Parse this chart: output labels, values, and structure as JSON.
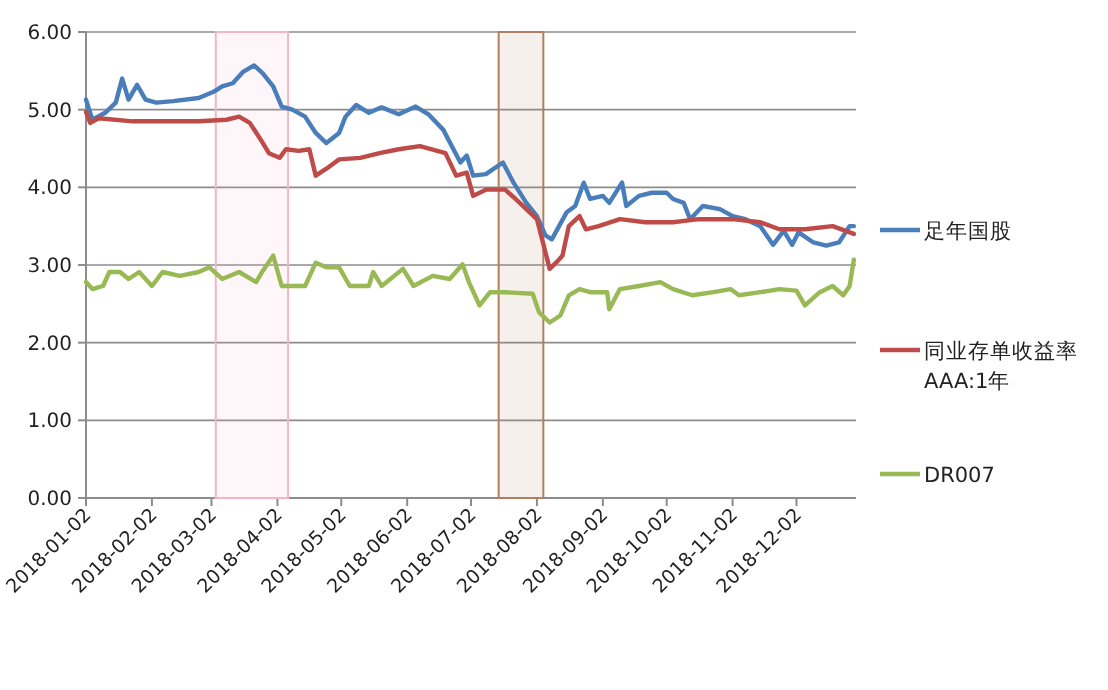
{
  "chart_data": {
    "type": "line",
    "xlim": [
      "2018-01-02",
      "2018-12-30"
    ],
    "ylim": [
      0,
      6
    ],
    "xticks": [
      "2018-01-02",
      "2018-02-02",
      "2018-03-02",
      "2018-04-02",
      "2018-05-02",
      "2018-06-02",
      "2018-07-02",
      "2018-08-02",
      "2018-09-02",
      "2018-10-02",
      "2018-11-02",
      "2018-12-02"
    ],
    "yticks": [
      {
        "value": 0,
        "label": "0.00"
      },
      {
        "value": 1,
        "label": "1.00"
      },
      {
        "value": 2,
        "label": "2.00"
      },
      {
        "value": 3,
        "label": "3.00"
      },
      {
        "value": 4,
        "label": "4.00"
      },
      {
        "value": 5,
        "label": "5.00"
      },
      {
        "value": 6,
        "label": "6.00"
      }
    ],
    "grid": "y",
    "legend": "right",
    "line_style": "solid",
    "marker": "none",
    "bands": [
      {
        "axis": "x",
        "from": "2018-03-04",
        "to": "2018-04-07",
        "color": "#f4b6c2"
      },
      {
        "axis": "x",
        "from": "2018-07-15",
        "to": "2018-08-05",
        "color": "#b08060"
      }
    ],
    "series": [
      {
        "name": "足年国股",
        "color": "#4a7ebb",
        "x": [
          "2018-01-02",
          "2018-01-05",
          "2018-01-11",
          "2018-01-16",
          "2018-01-19",
          "2018-01-22",
          "2018-01-26",
          "2018-01-30",
          "2018-02-04",
          "2018-02-12",
          "2018-02-24",
          "2018-03-03",
          "2018-03-07",
          "2018-03-12",
          "2018-03-17",
          "2018-03-22",
          "2018-03-26",
          "2018-03-31",
          "2018-04-04",
          "2018-04-09",
          "2018-04-15",
          "2018-04-20",
          "2018-04-25",
          "2018-05-01",
          "2018-05-04",
          "2018-05-09",
          "2018-05-15",
          "2018-05-21",
          "2018-05-29",
          "2018-06-06",
          "2018-06-12",
          "2018-06-19",
          "2018-06-23",
          "2018-06-27",
          "2018-06-30",
          "2018-07-03",
          "2018-07-09",
          "2018-07-17",
          "2018-07-22",
          "2018-07-28",
          "2018-08-02",
          "2018-08-06",
          "2018-08-09",
          "2018-08-16",
          "2018-08-20",
          "2018-08-24",
          "2018-08-27",
          "2018-09-02",
          "2018-09-05",
          "2018-09-11",
          "2018-09-13",
          "2018-09-19",
          "2018-09-25",
          "2018-10-02",
          "2018-10-05",
          "2018-10-10",
          "2018-10-13",
          "2018-10-19",
          "2018-10-27",
          "2018-11-02",
          "2018-11-08",
          "2018-11-15",
          "2018-11-21",
          "2018-11-26",
          "2018-11-30",
          "2018-12-03",
          "2018-12-10",
          "2018-12-16",
          "2018-12-22",
          "2018-12-27",
          "2018-12-29"
        ],
        "values": [
          5.13,
          4.87,
          4.96,
          5.09,
          5.4,
          5.13,
          5.32,
          5.13,
          5.09,
          5.11,
          5.15,
          5.23,
          5.3,
          5.34,
          5.49,
          5.57,
          5.47,
          5.3,
          5.04,
          5.0,
          4.91,
          4.7,
          4.57,
          4.7,
          4.91,
          5.06,
          4.96,
          5.03,
          4.94,
          5.04,
          4.94,
          4.74,
          4.53,
          4.32,
          4.41,
          4.15,
          4.17,
          4.32,
          4.06,
          3.8,
          3.63,
          3.38,
          3.33,
          3.68,
          3.76,
          4.06,
          3.85,
          3.89,
          3.8,
          4.06,
          3.76,
          3.89,
          3.93,
          3.93,
          3.85,
          3.8,
          3.59,
          3.76,
          3.72,
          3.63,
          3.59,
          3.5,
          3.26,
          3.44,
          3.26,
          3.42,
          3.29,
          3.25,
          3.29,
          3.5,
          3.5
        ]
      },
      {
        "name": "同业存单收益率 AAA:1年",
        "color": "#be4b48",
        "x": [
          "2018-01-02",
          "2018-01-04",
          "2018-01-08",
          "2018-01-24",
          "2018-02-09",
          "2018-02-24",
          "2018-03-09",
          "2018-03-15",
          "2018-03-20",
          "2018-03-25",
          "2018-03-29",
          "2018-04-03",
          "2018-04-06",
          "2018-04-12",
          "2018-04-17",
          "2018-04-20",
          "2018-04-25",
          "2018-05-01",
          "2018-05-11",
          "2018-05-20",
          "2018-05-29",
          "2018-06-08",
          "2018-06-20",
          "2018-06-25",
          "2018-06-30",
          "2018-07-03",
          "2018-07-09",
          "2018-07-18",
          "2018-07-23",
          "2018-07-28",
          "2018-08-02",
          "2018-08-08",
          "2018-08-11",
          "2018-08-14",
          "2018-08-17",
          "2018-08-22",
          "2018-08-25",
          "2018-08-31",
          "2018-09-10",
          "2018-09-22",
          "2018-10-05",
          "2018-10-17",
          "2018-11-02",
          "2018-11-15",
          "2018-11-24",
          "2018-12-06",
          "2018-12-19",
          "2018-12-29"
        ],
        "values": [
          4.97,
          4.83,
          4.89,
          4.85,
          4.85,
          4.85,
          4.87,
          4.91,
          4.83,
          4.62,
          4.44,
          4.38,
          4.49,
          4.47,
          4.49,
          4.15,
          4.24,
          4.36,
          4.38,
          4.44,
          4.49,
          4.53,
          4.44,
          4.15,
          4.19,
          3.89,
          3.97,
          3.97,
          3.85,
          3.72,
          3.59,
          2.95,
          3.03,
          3.12,
          3.5,
          3.63,
          3.46,
          3.5,
          3.59,
          3.55,
          3.55,
          3.59,
          3.59,
          3.55,
          3.46,
          3.46,
          3.5,
          3.4
        ]
      },
      {
        "name": "DR007",
        "color": "#98b954",
        "x": [
          "2018-01-02",
          "2018-01-05",
          "2018-01-10",
          "2018-01-13",
          "2018-01-18",
          "2018-01-22",
          "2018-01-27",
          "2018-02-02",
          "2018-02-07",
          "2018-02-15",
          "2018-02-24",
          "2018-03-01",
          "2018-03-07",
          "2018-03-15",
          "2018-03-23",
          "2018-03-26",
          "2018-03-31",
          "2018-04-04",
          "2018-04-15",
          "2018-04-20",
          "2018-04-25",
          "2018-05-01",
          "2018-05-06",
          "2018-05-15",
          "2018-05-17",
          "2018-05-21",
          "2018-05-31",
          "2018-06-05",
          "2018-06-14",
          "2018-06-22",
          "2018-06-28",
          "2018-07-01",
          "2018-07-06",
          "2018-07-11",
          "2018-07-18",
          "2018-07-31",
          "2018-08-03",
          "2018-08-08",
          "2018-08-13",
          "2018-08-17",
          "2018-08-22",
          "2018-08-27",
          "2018-09-04",
          "2018-09-05",
          "2018-09-10",
          "2018-09-19",
          "2018-09-29",
          "2018-10-05",
          "2018-10-14",
          "2018-10-24",
          "2018-11-01",
          "2018-11-05",
          "2018-11-15",
          "2018-11-24",
          "2018-12-02",
          "2018-12-06",
          "2018-12-13",
          "2018-12-19",
          "2018-12-24",
          "2018-12-27",
          "2018-12-29"
        ],
        "values": [
          2.78,
          2.69,
          2.73,
          2.91,
          2.91,
          2.82,
          2.91,
          2.73,
          2.91,
          2.86,
          2.91,
          2.97,
          2.82,
          2.91,
          2.78,
          2.92,
          3.12,
          2.73,
          2.73,
          3.03,
          2.97,
          2.97,
          2.73,
          2.73,
          2.91,
          2.73,
          2.95,
          2.73,
          2.86,
          2.82,
          3.01,
          2.78,
          2.48,
          2.65,
          2.65,
          2.63,
          2.39,
          2.26,
          2.35,
          2.61,
          2.69,
          2.65,
          2.65,
          2.43,
          2.69,
          2.73,
          2.78,
          2.69,
          2.61,
          2.65,
          2.69,
          2.61,
          2.65,
          2.69,
          2.67,
          2.48,
          2.65,
          2.73,
          2.61,
          2.73,
          3.07
        ]
      }
    ]
  }
}
